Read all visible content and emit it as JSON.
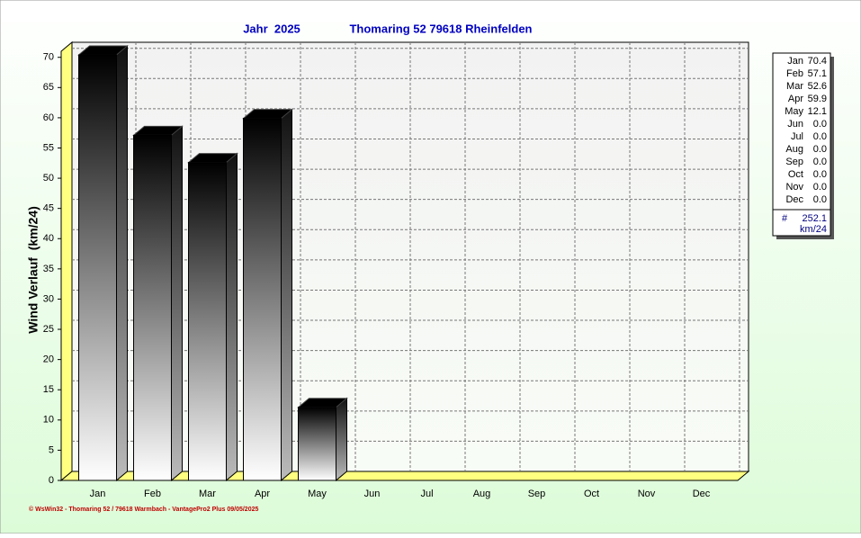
{
  "chart_data": {
    "type": "bar",
    "title": "Jahr  2025",
    "subtitle": "Thomaring 52 79618 Rheinfelden",
    "ylabel": "Wind Verlauf  (km/24)",
    "categories": [
      "Jan",
      "Feb",
      "Mar",
      "Apr",
      "May",
      "Jun",
      "Jul",
      "Aug",
      "Sep",
      "Oct",
      "Nov",
      "Dec"
    ],
    "values": [
      70.4,
      57.1,
      52.6,
      59.9,
      12.1,
      0,
      0,
      0,
      0,
      0,
      0,
      0
    ],
    "value_labels": [
      "70.4",
      "57.1",
      "52.6",
      "59.9",
      "12.1",
      "0.0",
      "0.0",
      "0.0",
      "0.0",
      "0.0",
      "0.0",
      "0.0"
    ],
    "ylim": [
      0,
      71
    ],
    "yticks": [
      0,
      5,
      10,
      15,
      20,
      25,
      30,
      35,
      40,
      45,
      50,
      55,
      60,
      65,
      70
    ],
    "grid": true,
    "legend_total": {
      "symbol": "#",
      "value": 252.1,
      "unit": "km/24"
    },
    "footer": "© WsWin32 - Thomaring 52 / 79618 Warmbach - VantagePro2 Plus 09/05/2025"
  }
}
